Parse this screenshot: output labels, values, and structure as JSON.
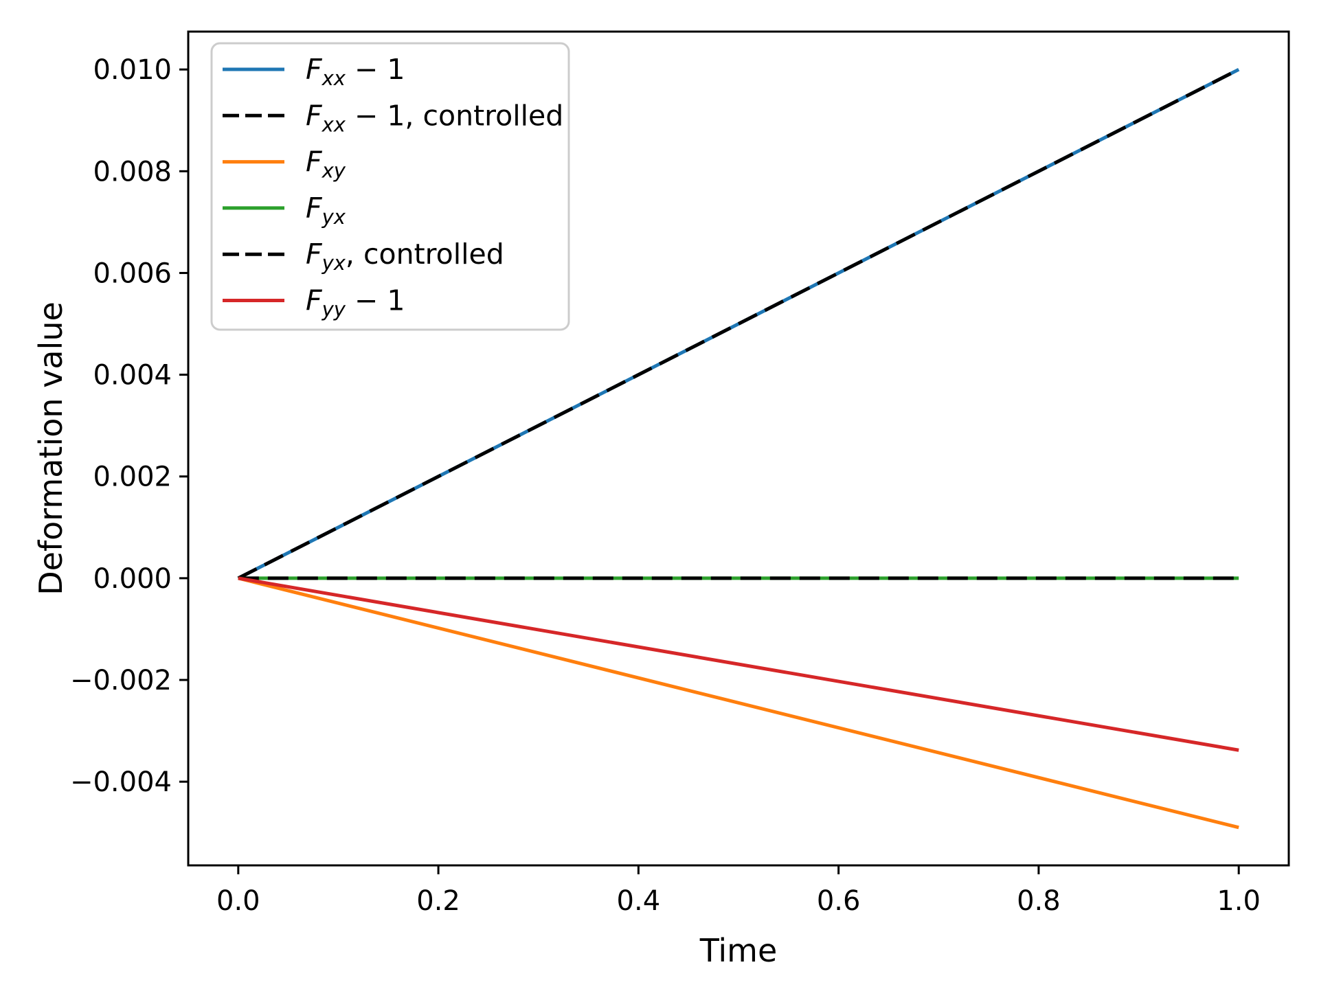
{
  "figure": {
    "background_color": "#ffffff",
    "plot_background_color": "#ffffff",
    "spine_color": "#000000",
    "legend_border_color": "#cccccc"
  },
  "chart_data": {
    "type": "line",
    "title": "",
    "xlabel": "Time",
    "ylabel": "Deformation value",
    "grid": false,
    "legend_position": "upper left",
    "xlim": [
      -0.05,
      1.05
    ],
    "ylim": [
      -0.005645,
      0.010745
    ],
    "x_ticks": [
      0.0,
      0.2,
      0.4,
      0.6,
      0.8,
      1.0
    ],
    "x_tick_labels": [
      "0.0",
      "0.2",
      "0.4",
      "0.6",
      "0.8",
      "1.0"
    ],
    "y_ticks": [
      -0.004,
      -0.002,
      0.0,
      0.002,
      0.004,
      0.006,
      0.008,
      0.01
    ],
    "y_tick_labels": [
      "−0.004",
      "−0.002",
      "0.000",
      "0.002",
      "0.004",
      "0.006",
      "0.008",
      "0.010"
    ],
    "series": [
      {
        "name": "Fxx-1",
        "label": "F_xx − 1",
        "label_parts": [
          {
            "text": "F",
            "italic": true
          },
          {
            "text": "xx",
            "italic": true,
            "sub": true
          },
          {
            "text": " − 1"
          }
        ],
        "color": "#1f77b4",
        "linestyle": "solid",
        "x": [
          0.0,
          1.0
        ],
        "y": [
          0.0,
          0.01
        ]
      },
      {
        "name": "Fxx-1-controlled",
        "label": "F_xx − 1, controlled",
        "label_parts": [
          {
            "text": "F",
            "italic": true
          },
          {
            "text": "xx",
            "italic": true,
            "sub": true
          },
          {
            "text": " − 1, controlled"
          }
        ],
        "color": "#000000",
        "linestyle": "dashed",
        "x": [
          0.0,
          1.0
        ],
        "y": [
          0.0,
          0.01
        ]
      },
      {
        "name": "Fxy",
        "label": "F_xy",
        "label_parts": [
          {
            "text": "F",
            "italic": true
          },
          {
            "text": "xy",
            "italic": true,
            "sub": true
          }
        ],
        "color": "#ff7f0e",
        "linestyle": "solid",
        "x": [
          0.0,
          1.0
        ],
        "y": [
          0.0,
          -0.0049
        ]
      },
      {
        "name": "Fyx",
        "label": "F_yx",
        "label_parts": [
          {
            "text": "F",
            "italic": true
          },
          {
            "text": "yx",
            "italic": true,
            "sub": true
          }
        ],
        "color": "#2ca02c",
        "linestyle": "solid",
        "x": [
          0.0,
          1.0
        ],
        "y": [
          0.0,
          0.0
        ]
      },
      {
        "name": "Fyx-controlled",
        "label": "F_yx, controlled",
        "label_parts": [
          {
            "text": "F",
            "italic": true
          },
          {
            "text": "yx",
            "italic": true,
            "sub": true
          },
          {
            "text": ", controlled"
          }
        ],
        "color": "#000000",
        "linestyle": "dashed",
        "x": [
          0.0,
          1.0
        ],
        "y": [
          0.0,
          0.0
        ]
      },
      {
        "name": "Fyy-1",
        "label": "F_yy − 1",
        "label_parts": [
          {
            "text": "F",
            "italic": true
          },
          {
            "text": "yy",
            "italic": true,
            "sub": true
          },
          {
            "text": " − 1"
          }
        ],
        "color": "#d62728",
        "linestyle": "solid",
        "x": [
          0.0,
          1.0
        ],
        "y": [
          0.0,
          -0.00338
        ]
      }
    ]
  }
}
